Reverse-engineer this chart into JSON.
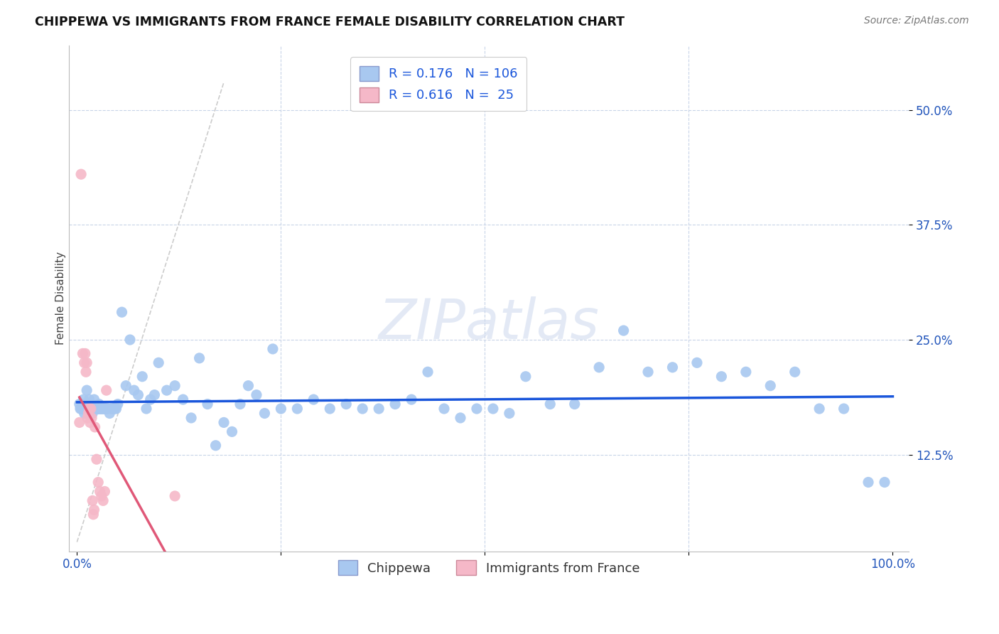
{
  "title": "CHIPPEWA VS IMMIGRANTS FROM FRANCE FEMALE DISABILITY CORRELATION CHART",
  "source": "Source: ZipAtlas.com",
  "ylabel": "Female Disability",
  "watermark": "ZIPatlas",
  "legend_1": {
    "R": 0.176,
    "N": 106,
    "color": "#a8c8f0"
  },
  "legend_2": {
    "R": 0.616,
    "N": 25,
    "color": "#f5b8c8"
  },
  "y_ticks": [
    0.125,
    0.25,
    0.375,
    0.5
  ],
  "y_tick_labels": [
    "12.5%",
    "25.0%",
    "37.5%",
    "50.0%"
  ],
  "xlim": [
    -0.01,
    1.02
  ],
  "ylim": [
    0.02,
    0.57
  ],
  "blue_color": "#a8c8f0",
  "pink_color": "#f5b8c8",
  "line_blue": "#1a56db",
  "line_pink": "#e05878",
  "grid_color": "#c8d4e8",
  "background": "#ffffff",
  "chippewa_x": [
    0.004,
    0.006,
    0.007,
    0.008,
    0.009,
    0.01,
    0.011,
    0.012,
    0.013,
    0.014,
    0.015,
    0.016,
    0.017,
    0.018,
    0.019,
    0.02,
    0.021,
    0.022,
    0.023,
    0.024,
    0.025,
    0.026,
    0.027,
    0.028,
    0.03,
    0.032,
    0.034,
    0.036,
    0.038,
    0.04,
    0.042,
    0.044,
    0.046,
    0.048,
    0.05,
    0.055,
    0.06,
    0.065,
    0.07,
    0.075,
    0.08,
    0.085,
    0.09,
    0.095,
    0.1,
    0.11,
    0.12,
    0.13,
    0.14,
    0.15,
    0.16,
    0.17,
    0.18,
    0.19,
    0.2,
    0.21,
    0.22,
    0.23,
    0.24,
    0.25,
    0.27,
    0.29,
    0.31,
    0.33,
    0.35,
    0.37,
    0.39,
    0.41,
    0.43,
    0.45,
    0.47,
    0.49,
    0.51,
    0.53,
    0.55,
    0.58,
    0.61,
    0.64,
    0.67,
    0.7,
    0.73,
    0.76,
    0.79,
    0.82,
    0.85,
    0.88,
    0.91,
    0.94,
    0.97,
    0.99,
    0.003,
    0.005,
    0.008,
    0.011,
    0.013,
    0.015,
    0.017,
    0.019,
    0.021,
    0.023,
    0.025,
    0.027,
    0.029,
    0.031,
    0.033,
    0.035
  ],
  "chippewa_y": [
    0.175,
    0.175,
    0.18,
    0.185,
    0.17,
    0.18,
    0.175,
    0.195,
    0.175,
    0.175,
    0.185,
    0.175,
    0.18,
    0.175,
    0.17,
    0.175,
    0.185,
    0.175,
    0.175,
    0.175,
    0.175,
    0.175,
    0.18,
    0.175,
    0.175,
    0.175,
    0.175,
    0.175,
    0.175,
    0.17,
    0.175,
    0.175,
    0.175,
    0.175,
    0.18,
    0.28,
    0.2,
    0.25,
    0.195,
    0.19,
    0.21,
    0.175,
    0.185,
    0.19,
    0.225,
    0.195,
    0.2,
    0.185,
    0.165,
    0.23,
    0.18,
    0.135,
    0.16,
    0.15,
    0.18,
    0.2,
    0.19,
    0.17,
    0.24,
    0.175,
    0.175,
    0.185,
    0.175,
    0.18,
    0.175,
    0.175,
    0.18,
    0.185,
    0.215,
    0.175,
    0.165,
    0.175,
    0.175,
    0.17,
    0.21,
    0.18,
    0.18,
    0.22,
    0.26,
    0.215,
    0.22,
    0.225,
    0.21,
    0.215,
    0.2,
    0.215,
    0.175,
    0.175,
    0.095,
    0.095,
    0.18,
    0.175,
    0.175,
    0.175,
    0.175,
    0.175,
    0.175,
    0.175,
    0.175,
    0.175,
    0.175,
    0.175,
    0.175,
    0.175,
    0.175,
    0.175
  ],
  "france_x": [
    0.003,
    0.005,
    0.007,
    0.009,
    0.01,
    0.011,
    0.012,
    0.013,
    0.014,
    0.015,
    0.016,
    0.017,
    0.018,
    0.019,
    0.02,
    0.021,
    0.022,
    0.024,
    0.026,
    0.028,
    0.03,
    0.032,
    0.034,
    0.036,
    0.12
  ],
  "france_y": [
    0.16,
    0.43,
    0.235,
    0.225,
    0.235,
    0.215,
    0.225,
    0.165,
    0.17,
    0.175,
    0.16,
    0.175,
    0.165,
    0.075,
    0.06,
    0.065,
    0.155,
    0.12,
    0.095,
    0.085,
    0.08,
    0.075,
    0.085,
    0.195,
    0.08
  ],
  "ref_line_x": [
    0.0,
    0.18
  ],
  "ref_line_y": [
    0.03,
    0.53
  ],
  "blue_line_x_start": 0.0,
  "blue_line_x_end": 1.0,
  "pink_line_x_start": 0.003,
  "pink_line_x_end": 0.12
}
